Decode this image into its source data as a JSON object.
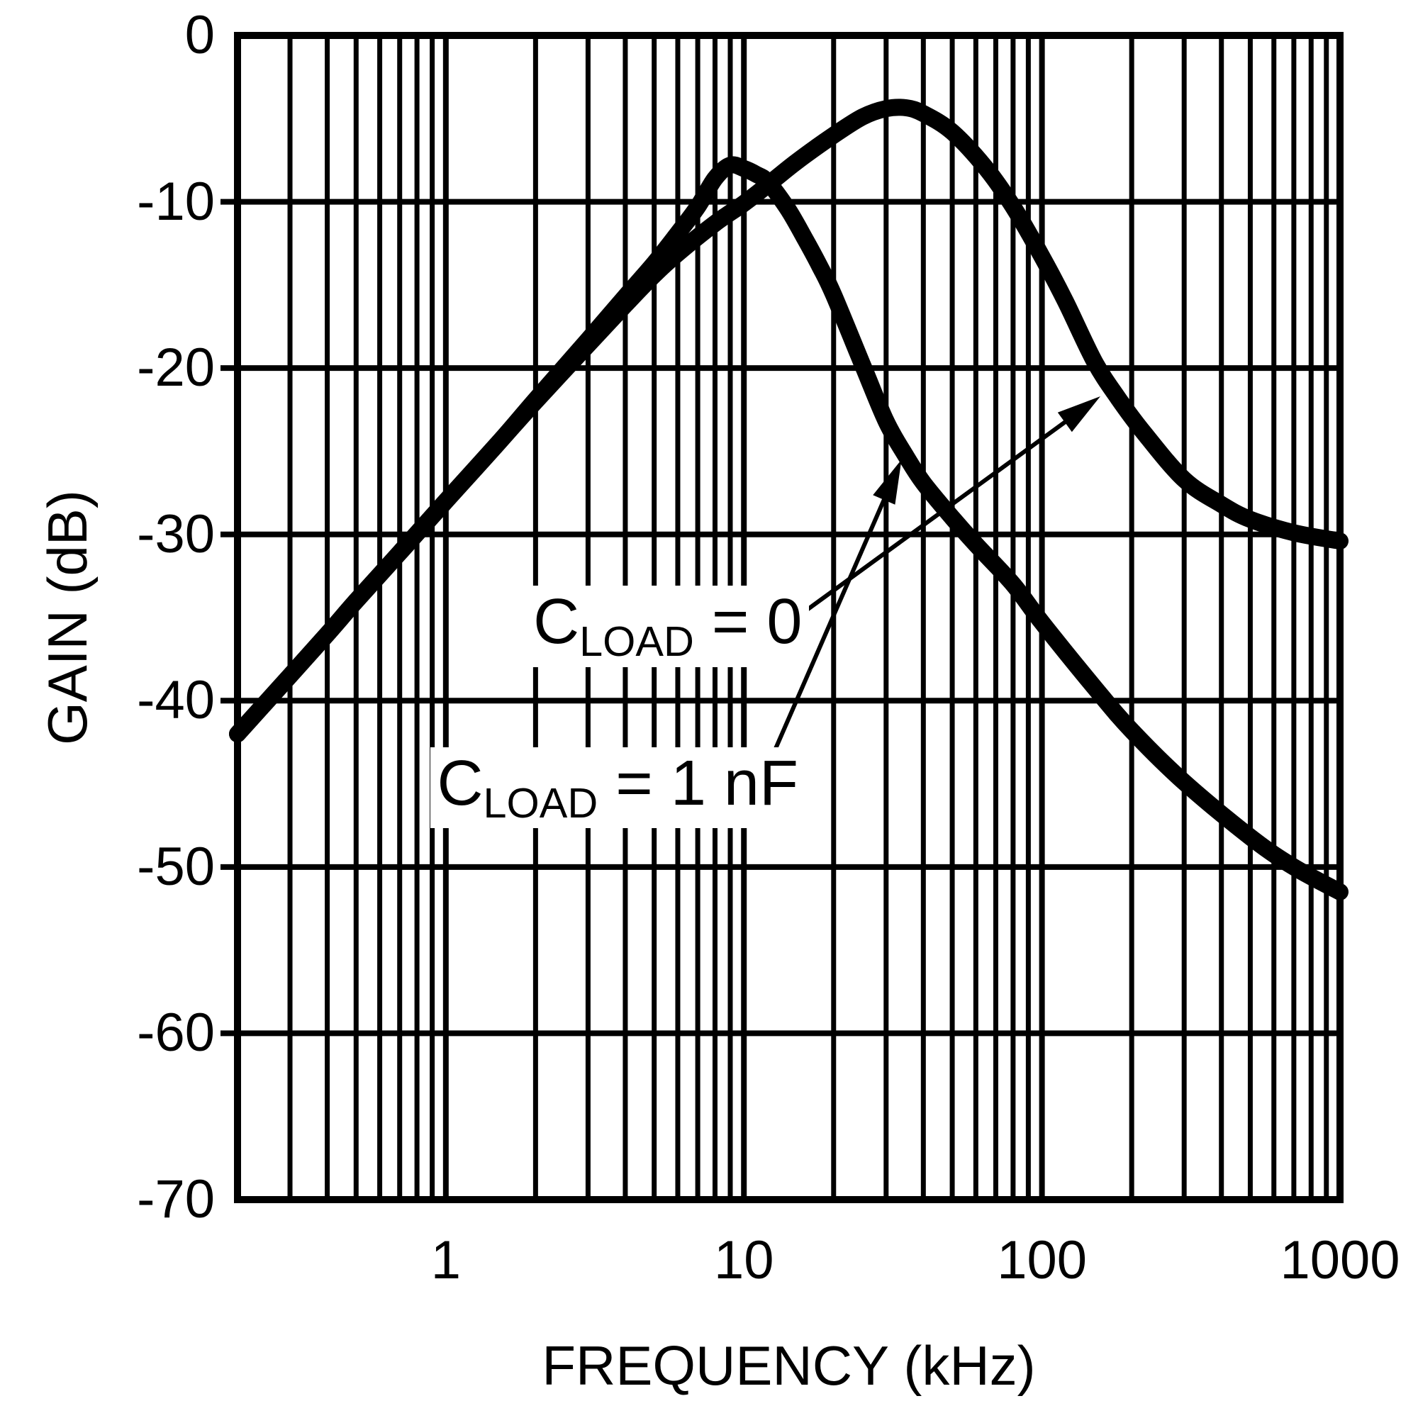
{
  "figure": {
    "background_color": "#ffffff",
    "ink_color": "#000000"
  },
  "chart_data": {
    "type": "line",
    "title": "",
    "xlabel": "FREQUENCY (kHz)",
    "ylabel": "GAIN (dB)",
    "x_scale": "log",
    "x_range_khz": [
      0.2,
      1000
    ],
    "x_tick_values": [
      1,
      10,
      100,
      1000
    ],
    "x_tick_labels": [
      "1",
      "10",
      "100",
      "1000"
    ],
    "y_range_db": [
      -70,
      0
    ],
    "y_tick_values": [
      0,
      -10,
      -20,
      -30,
      -40,
      -50,
      -60,
      -70
    ],
    "y_tick_labels": [
      "0",
      "-10",
      "-20",
      "-30",
      "-40",
      "-50",
      "-60",
      "-70"
    ],
    "grid": "all log minor verticals drawn; horizontal lines every 10 dB",
    "legend_position": "inline annotations with arrows",
    "series": [
      {
        "name": "CLOAD = 0",
        "points": [
          [
            0.2,
            -42
          ],
          [
            0.3,
            -38.5
          ],
          [
            0.4,
            -36
          ],
          [
            0.5,
            -34
          ],
          [
            0.7,
            -31.1
          ],
          [
            1,
            -28
          ],
          [
            1.5,
            -24.5
          ],
          [
            2,
            -22
          ],
          [
            3,
            -18.6
          ],
          [
            4,
            -16.2
          ],
          [
            5,
            -14.4
          ],
          [
            6,
            -13.1
          ],
          [
            8,
            -11.3
          ],
          [
            10,
            -10.1
          ],
          [
            12,
            -9.0
          ],
          [
            15,
            -7.6
          ],
          [
            20,
            -6.0
          ],
          [
            25,
            -4.9
          ],
          [
            30,
            -4.4
          ],
          [
            35,
            -4.35
          ],
          [
            40,
            -4.7
          ],
          [
            50,
            -5.8
          ],
          [
            65,
            -8.0
          ],
          [
            80,
            -10.3
          ],
          [
            100,
            -13.3
          ],
          [
            120,
            -16.0
          ],
          [
            150,
            -19.6
          ],
          [
            180,
            -21.8
          ],
          [
            220,
            -23.9
          ],
          [
            300,
            -26.7
          ],
          [
            400,
            -28.2
          ],
          [
            500,
            -29.1
          ],
          [
            700,
            -29.9
          ],
          [
            1000,
            -30.4
          ]
        ]
      },
      {
        "name": "CLOAD = 1 nF",
        "points": [
          [
            0.2,
            -42
          ],
          [
            0.3,
            -38.5
          ],
          [
            0.4,
            -36
          ],
          [
            0.5,
            -34
          ],
          [
            0.7,
            -31.1
          ],
          [
            1,
            -28
          ],
          [
            1.5,
            -24.5
          ],
          [
            2,
            -21.9
          ],
          [
            3,
            -18.3
          ],
          [
            4,
            -15.7
          ],
          [
            5,
            -13.7
          ],
          [
            6,
            -11.9
          ],
          [
            7,
            -10.3
          ],
          [
            8,
            -8.6
          ],
          [
            9,
            -7.8
          ],
          [
            10,
            -8.0
          ],
          [
            11,
            -8.35
          ],
          [
            12,
            -8.8
          ],
          [
            14,
            -10.4
          ],
          [
            16,
            -12.2
          ],
          [
            18,
            -13.9
          ],
          [
            20,
            -15.6
          ],
          [
            25,
            -19.8
          ],
          [
            30,
            -23.2
          ],
          [
            35,
            -25.3
          ],
          [
            40,
            -26.9
          ],
          [
            50,
            -29.0
          ],
          [
            60,
            -30.6
          ],
          [
            80,
            -33.0
          ],
          [
            100,
            -35.3
          ],
          [
            150,
            -39.2
          ],
          [
            200,
            -41.8
          ],
          [
            300,
            -44.9
          ],
          [
            500,
            -48.2
          ],
          [
            700,
            -50.0
          ],
          [
            1000,
            -51.5
          ]
        ]
      }
    ],
    "annotations": [
      {
        "sym": "C",
        "sub": "LOAD",
        "rest": " = 0",
        "anchor_f_khz": 1.86,
        "anchor_db": -33.1,
        "arrow_from": [
          15,
          -35
        ],
        "arrow_to": [
          157,
          -21.7
        ]
      },
      {
        "sym": "C",
        "sub": "LOAD",
        "rest": " = 1 nF",
        "anchor_f_khz": 0.885,
        "anchor_db": -42.8,
        "arrow_from": [
          12.2,
          -43.7
        ],
        "arrow_to": [
          33.8,
          -25.5
        ]
      }
    ]
  }
}
